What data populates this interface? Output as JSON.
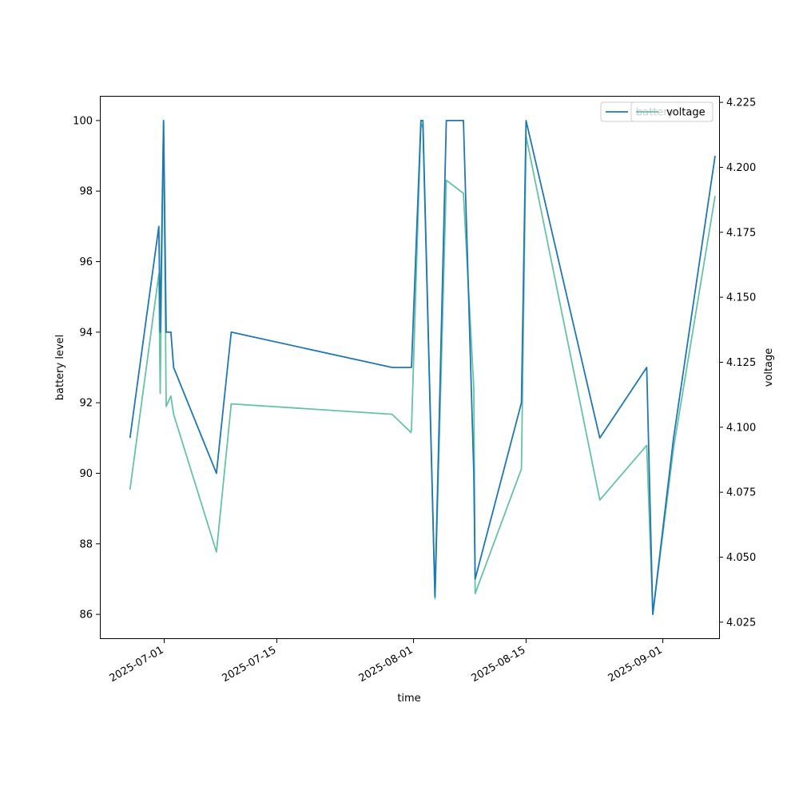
{
  "chart_data": {
    "type": "line",
    "title": "",
    "xlabel": "time",
    "ylabel": "battery level",
    "y2label": "voltage",
    "xlim": [
      "2025-06-23",
      "2025-09-08"
    ],
    "ylim": [
      85.3,
      100.7
    ],
    "y2lim": [
      4.0185,
      4.2275
    ],
    "x_ticks": [
      "2025-07-01",
      "2025-07-15",
      "2025-08-01",
      "2025-08-15",
      "2025-09-01"
    ],
    "y_ticks": [
      "86",
      "88",
      "90",
      "92",
      "94",
      "96",
      "98",
      "100"
    ],
    "y2_ticks": [
      "4.025",
      "4.050",
      "4.075",
      "4.100",
      "4.125",
      "4.150",
      "4.175",
      "4.200",
      "4.225"
    ],
    "grid": false,
    "legend_placement": "top-right",
    "series": [
      {
        "name": "battery",
        "axis": "left",
        "color": "#1f77b4",
        "x": [
          "2025-06-26 18:00",
          "2025-06-30 08:00",
          "2025-06-30 12:00",
          "2025-06-30 22:00",
          "2025-07-01 06:00",
          "2025-07-01 20:00",
          "2025-07-02 04:00",
          "2025-07-07 12:00",
          "2025-07-09 08:00",
          "2025-07-29 08:00",
          "2025-07-31 18:00",
          "2025-08-01 22:00",
          "2025-08-02 04:00",
          "2025-08-03 16:00",
          "2025-08-05 02:00",
          "2025-08-07 05:00",
          "2025-08-08 12:00",
          "2025-08-08 16:00",
          "2025-08-14 10:00",
          "2025-08-15 00:00",
          "2025-08-24 04:00",
          "2025-08-30 00:00",
          "2025-08-30 18:00",
          "2025-09-02 08:00",
          "2025-09-07 12:00"
        ],
        "values": [
          91,
          97,
          94,
          100,
          94,
          94,
          93,
          90,
          94,
          93,
          93,
          100,
          100,
          86.5,
          100,
          100,
          90,
          87,
          92,
          100,
          91,
          93,
          86,
          91,
          99
        ]
      },
      {
        "name": "voltage",
        "axis": "right",
        "color": "#66c2a5",
        "x": [
          "2025-06-26 18:00",
          "2025-06-30 08:00",
          "2025-06-30 12:00",
          "2025-06-30 22:00",
          "2025-07-01 06:00",
          "2025-07-01 20:00",
          "2025-07-02 04:00",
          "2025-07-07 12:00",
          "2025-07-09 08:00",
          "2025-07-29 08:00",
          "2025-07-31 16:00",
          "2025-07-31 18:00",
          "2025-08-01 22:00",
          "2025-08-02 04:00",
          "2025-08-03 16:00",
          "2025-08-05 02:00",
          "2025-08-07 05:00",
          "2025-08-08 12:00",
          "2025-08-08 16:00",
          "2025-08-14 10:00",
          "2025-08-15 00:00",
          "2025-08-24 04:00",
          "2025-08-30 00:00",
          "2025-08-30 18:00",
          "2025-09-02 08:00",
          "2025-09-07 12:00"
        ],
        "values": [
          4.076,
          4.159,
          4.113,
          4.218,
          4.108,
          4.112,
          4.105,
          4.052,
          4.109,
          4.105,
          4.098,
          4.099,
          4.217,
          4.215,
          4.034,
          4.195,
          4.19,
          4.115,
          4.036,
          4.084,
          4.212,
          4.072,
          4.093,
          4.028,
          4.092,
          4.189
        ]
      }
    ],
    "legends": [
      {
        "entries": [
          {
            "label": "battery",
            "color": "#1f77b4"
          }
        ]
      },
      {
        "entries": [
          {
            "label": "voltage",
            "color": "#66c2a5"
          }
        ]
      }
    ]
  }
}
